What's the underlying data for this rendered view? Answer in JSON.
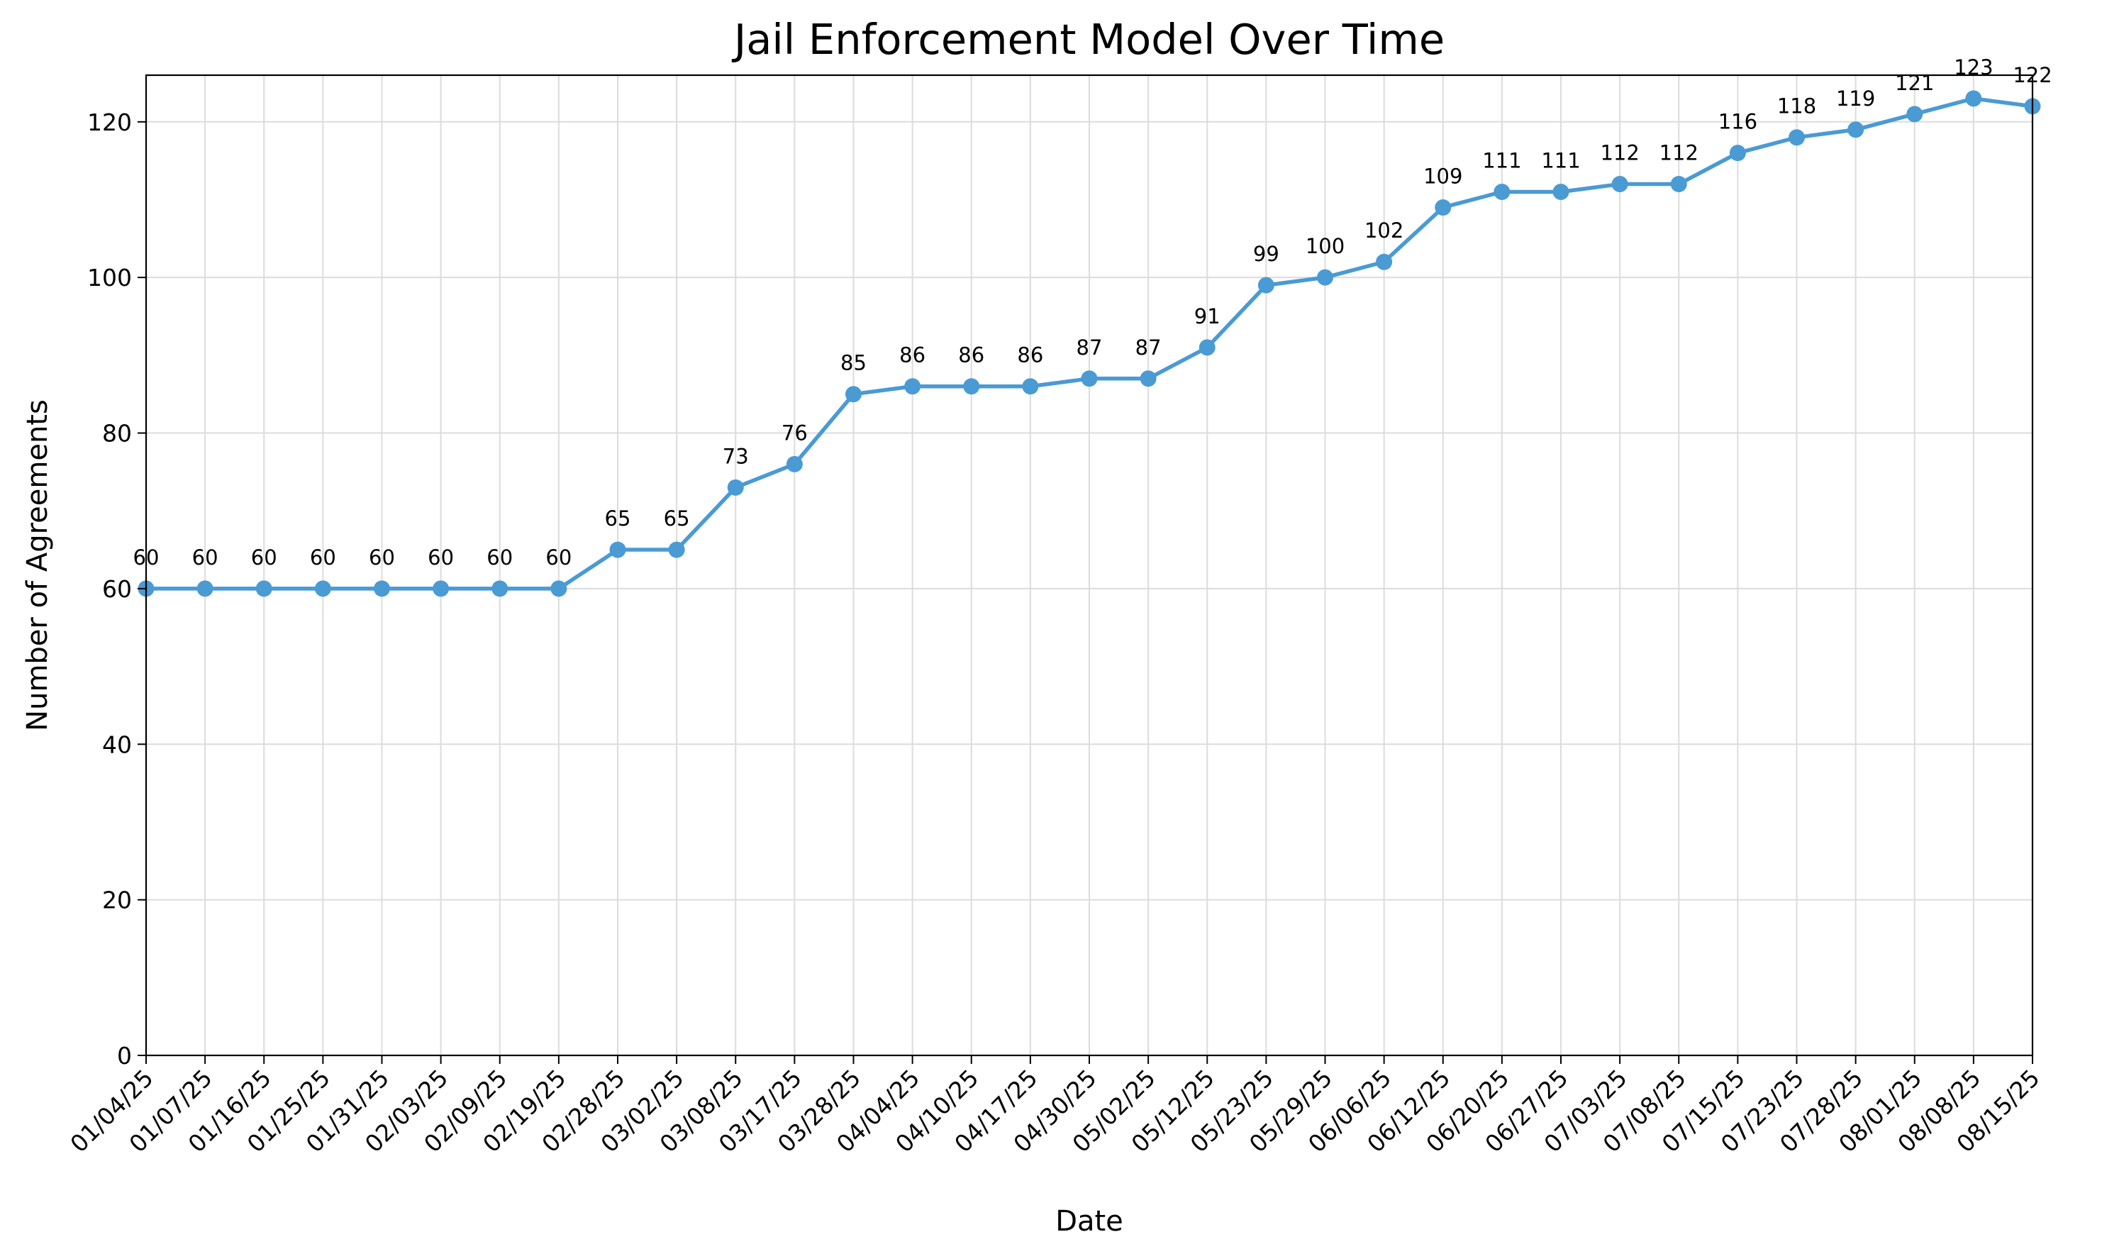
{
  "chart_data": {
    "type": "line",
    "title": "Jail Enforcement Model Over Time",
    "xlabel": "Date",
    "ylabel": "Number of Agreements",
    "ylim": [
      0,
      126
    ],
    "yticks": [
      0,
      20,
      40,
      60,
      80,
      100,
      120
    ],
    "grid": true,
    "line_color": "#4a9ad4",
    "categories": [
      "01/04/25",
      "01/07/25",
      "01/16/25",
      "01/25/25",
      "01/31/25",
      "02/03/25",
      "02/09/25",
      "02/19/25",
      "02/28/25",
      "03/02/25",
      "03/08/25",
      "03/17/25",
      "03/28/25",
      "04/04/25",
      "04/10/25",
      "04/17/25",
      "04/30/25",
      "05/02/25",
      "05/12/25",
      "05/23/25",
      "05/29/25",
      "06/06/25",
      "06/12/25",
      "06/20/25",
      "06/27/25",
      "07/03/25",
      "07/08/25",
      "07/15/25",
      "07/23/25",
      "07/28/25",
      "08/01/25",
      "08/08/25",
      "08/15/25"
    ],
    "values": [
      60,
      60,
      60,
      60,
      60,
      60,
      60,
      60,
      65,
      65,
      73,
      76,
      85,
      86,
      86,
      86,
      87,
      87,
      91,
      99,
      100,
      102,
      109,
      111,
      111,
      112,
      112,
      116,
      118,
      119,
      121,
      123,
      122
    ]
  }
}
